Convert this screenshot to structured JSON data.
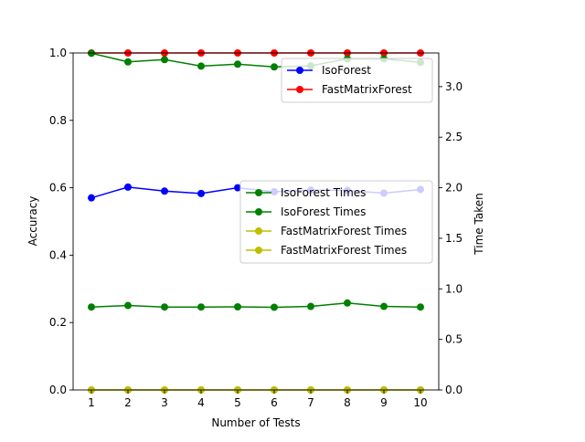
{
  "chart_data": {
    "type": "line",
    "xlabel": "Number of Tests",
    "ylabel_left": "Accuracy",
    "ylabel_right": "Time Taken",
    "x": [
      1,
      2,
      3,
      4,
      5,
      6,
      7,
      8,
      9,
      10
    ],
    "xlim": [
      0.5,
      10.5
    ],
    "ylim_left": [
      0.0,
      1.0
    ],
    "ylim_right": [
      0.0,
      3.333
    ],
    "x_ticks": [
      "1",
      "2",
      "3",
      "4",
      "5",
      "6",
      "7",
      "8",
      "9",
      "10"
    ],
    "y_ticks_left": [
      "0.0",
      "0.2",
      "0.4",
      "0.6",
      "0.8",
      "1.0"
    ],
    "y_ticks_right": [
      "0.0",
      "0.5",
      "1.0",
      "1.5",
      "2.0",
      "2.5",
      "3.0"
    ],
    "grid": false,
    "left_series": [
      {
        "name": "IsoForest",
        "color": "#0000ff",
        "values": [
          0.57,
          0.602,
          0.59,
          0.583,
          0.6,
          0.588,
          0.593,
          0.592,
          0.584,
          0.595
        ]
      },
      {
        "name": "FastMatrixForest",
        "color": "#ff0000",
        "values": [
          1.0,
          1.0,
          1.0,
          1.0,
          1.0,
          1.0,
          1.0,
          1.0,
          1.0,
          1.0
        ]
      }
    ],
    "right_series": [
      {
        "name": "IsoForest Times",
        "color": "#008000",
        "values": [
          3.33,
          3.245,
          3.267,
          3.203,
          3.222,
          3.195,
          3.205,
          3.275,
          3.275,
          3.24
        ]
      },
      {
        "name": "IsoForest Times",
        "color": "#008000",
        "values": [
          0.82,
          0.835,
          0.82,
          0.82,
          0.822,
          0.818,
          0.826,
          0.86,
          0.826,
          0.82
        ]
      },
      {
        "name": "FastMatrixForest Times",
        "color": "#bfbf00",
        "values": [
          0.0,
          0.0,
          0.0,
          0.0,
          0.0,
          0.0,
          0.0,
          0.0,
          0.0,
          0.0
        ]
      },
      {
        "name": "FastMatrixForest Times",
        "color": "#bfbf00",
        "values": [
          0.0,
          0.0,
          0.0,
          0.0,
          0.0,
          0.0,
          0.0,
          0.0,
          0.0,
          0.0
        ]
      }
    ],
    "legend_left": {
      "placement": "upper-right",
      "entries": [
        "IsoForest",
        "FastMatrixForest"
      ]
    },
    "legend_right": {
      "placement": "center-right",
      "entries": [
        "IsoForest Times",
        "IsoForest Times",
        "FastMatrixForest Times",
        "FastMatrixForest Times"
      ]
    }
  }
}
